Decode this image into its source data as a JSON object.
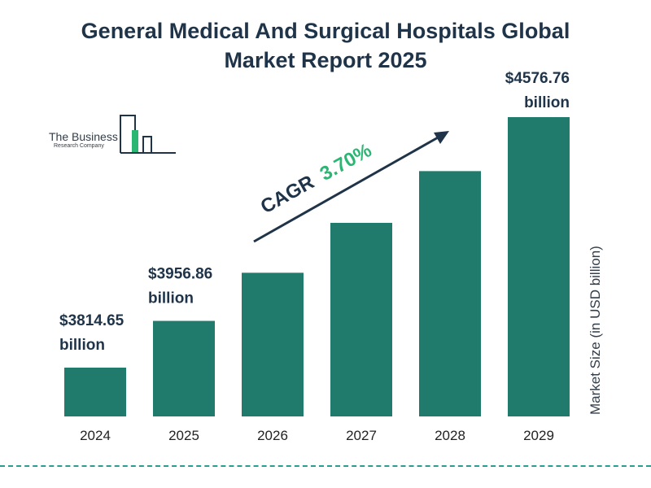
{
  "header": {
    "title_line1": "General Medical And Surgical Hospitals Global",
    "title_line2": "Market Report 2025"
  },
  "logo": {
    "name": "The Business",
    "sub": "Research Company"
  },
  "cagr": {
    "label": "CAGR",
    "value": "3.70%"
  },
  "colors": {
    "bar": "#217b6c",
    "title": "#1f3449",
    "cagr_value": "#2bb673",
    "divider": "#2a9d8f"
  },
  "chart_data": {
    "type": "bar",
    "title": "General Medical And Surgical Hospitals Global Market Report 2025",
    "categories": [
      "2024",
      "2025",
      "2026",
      "2027",
      "2028",
      "2029"
    ],
    "values": [
      3814.65,
      3956.86,
      4103.27,
      4255.09,
      4412.53,
      4576.76
    ],
    "data_labels": [
      [
        "$3814.65",
        "billion"
      ],
      [
        "$3956.86",
        "billion"
      ],
      null,
      null,
      null,
      [
        "$4576.76",
        "billion"
      ]
    ],
    "ylabel": "Market Size (in USD billion)",
    "xlabel": "",
    "grid": false,
    "legend": "none"
  }
}
